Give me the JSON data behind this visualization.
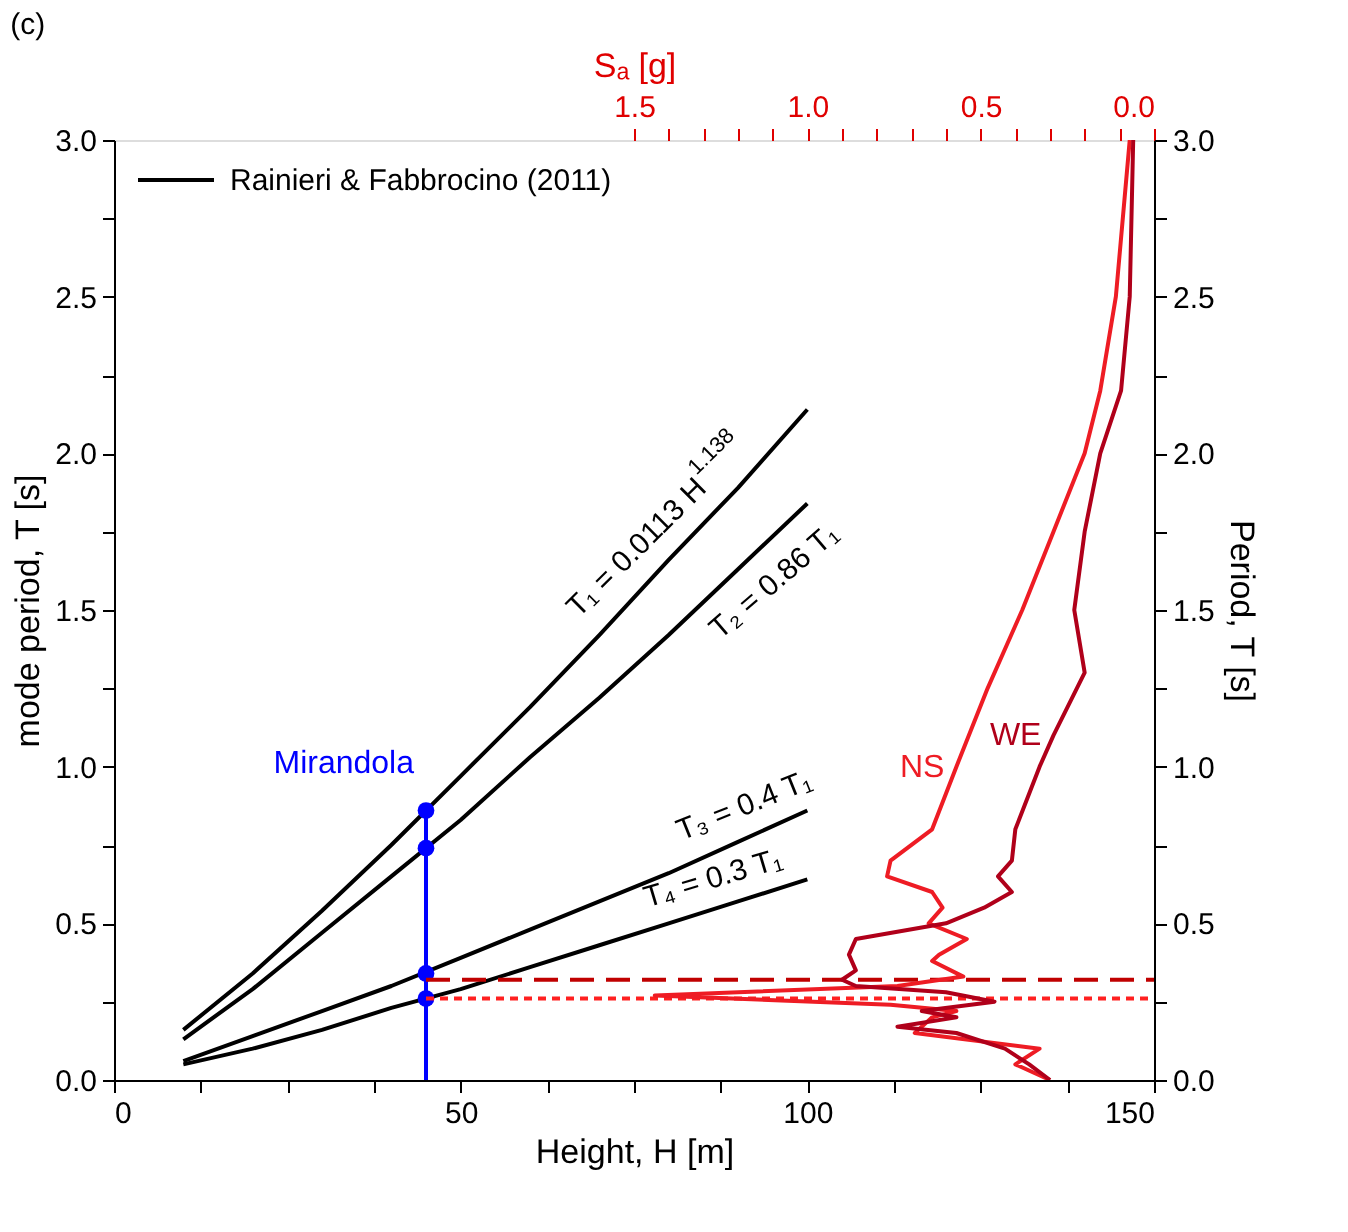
{
  "chart_data": {
    "type": "line",
    "title": "(c)",
    "xlabel": "Height, H [m]",
    "ylabel": "mode period, T [s]",
    "y2label": "Period, T [s]",
    "x2label": "Sₐ [g]",
    "xlim": [
      0,
      150
    ],
    "xticks": [
      0,
      {
        "value": 12.5,
        "label": null
      },
      {
        "value": 25,
        "label": null
      },
      {
        "value": 37.5,
        "label": null
      },
      50,
      {
        "value": 62.5,
        "label": null
      },
      {
        "value": 75,
        "label": null
      },
      {
        "value": 87.5,
        "label": null
      },
      100,
      {
        "value": 112.5,
        "label": null
      },
      {
        "value": 125,
        "label": null
      },
      {
        "value": 137.5,
        "label": null
      },
      150
    ],
    "ylim": [
      0.0,
      3.0
    ],
    "yticks": [
      {
        "value": 0,
        "label": "0.0"
      },
      {
        "value": 0.25,
        "label": null
      },
      0.5,
      {
        "value": 0.75,
        "label": null
      },
      {
        "value": 1,
        "label": "1.0"
      },
      {
        "value": 1.25,
        "label": null
      },
      1.5,
      {
        "value": 1.75,
        "label": null
      },
      {
        "value": 2,
        "label": "2.0"
      },
      {
        "value": 2.25,
        "label": null
      },
      2.5,
      {
        "value": 2.75,
        "label": null
      },
      {
        "value": 3,
        "label": "3.0"
      }
    ],
    "y2lim": [
      0.0,
      3.0
    ],
    "y2ticks": [
      {
        "value": 0,
        "label": "0.0"
      },
      {
        "value": 0.25,
        "label": null
      },
      0.5,
      {
        "value": 0.75,
        "label": null
      },
      {
        "value": 1,
        "label": "1.0"
      },
      {
        "value": 1.25,
        "label": null
      },
      1.5,
      {
        "value": 1.75,
        "label": null
      },
      {
        "value": 2,
        "label": "2.0"
      },
      {
        "value": 2.25,
        "label": null
      },
      2.5,
      {
        "value": 2.75,
        "label": null
      },
      {
        "value": 3,
        "label": "3.0"
      }
    ],
    "x2lim": [
      3.0,
      0.0
    ],
    "x2ticks": [
      1.5,
      {
        "value": 1.4,
        "label": null
      },
      {
        "value": 1.3,
        "label": null
      },
      {
        "value": 1.2,
        "label": null
      },
      {
        "value": 1.1,
        "label": null
      },
      {
        "value": 1,
        "label": "1.0"
      },
      {
        "value": 0.9,
        "label": null
      },
      {
        "value": 0.8,
        "label": null
      },
      {
        "value": 0.7,
        "label": null
      },
      {
        "value": 0.6,
        "label": null
      },
      0.5,
      {
        "value": 0.4,
        "label": null
      },
      {
        "value": 0.3,
        "label": null
      },
      {
        "value": 0.2,
        "label": null
      },
      {
        "value": 0.1,
        "label": null
      },
      {
        "value": 0,
        "label": "0.0"
      }
    ],
    "grid": false,
    "legend": "top left",
    "x": [
      10,
      20,
      30,
      40,
      50,
      60,
      70,
      80,
      90,
      100
    ],
    "series": [
      {
        "name": "Rainieri & Fabbrocino (2011)",
        "color": "#000000",
        "values": [
          0.16,
          0.34,
          0.54,
          0.75,
          0.97,
          1.19,
          1.42,
          1.66,
          1.89,
          2.14
        ]
      },
      {
        "color": "#000000",
        "values": [
          0.13,
          0.29,
          0.47,
          0.65,
          0.83,
          1.03,
          1.22,
          1.42,
          1.63,
          1.84
        ]
      },
      {
        "color": "#000000",
        "values": [
          0.06,
          0.14,
          0.22,
          0.3,
          0.39,
          0.48,
          0.57,
          0.66,
          0.76,
          0.86
        ]
      },
      {
        "color": "#000000",
        "values": [
          0.05,
          0.1,
          0.16,
          0.23,
          0.29,
          0.36,
          0.43,
          0.5,
          0.57,
          0.64
        ]
      },
      {
        "color": "#0000ff",
        "x": [
          45,
          45
        ],
        "values": [
          0.0,
          0.86
        ]
      },
      {
        "name": "Mirandola",
        "type": "scatter",
        "marker": "circle",
        "color": "#0000ff",
        "x": [
          45,
          45,
          45,
          45
        ],
        "values": [
          0.86,
          0.74,
          0.34,
          0.26
        ]
      },
      {
        "color": "#c00000",
        "line_style": "dashed",
        "x": [
          45,
          150
        ],
        "values": [
          0.32,
          0.32
        ]
      },
      {
        "color": "#ff2020",
        "line_style": "dotted",
        "x": [
          45,
          150
        ],
        "values": [
          0.26,
          0.26
        ]
      },
      {
        "name": "NS",
        "axis": "x2",
        "color": "#ee1c24",
        "x": [
          0.07,
          0.11,
          0.155,
          0.2,
          0.29,
          0.38,
          0.48,
          0.57,
          0.64,
          0.76,
          0.77,
          0.64,
          0.61,
          0.65,
          0.54,
          0.62,
          0.64,
          0.55,
          0.74,
          1.44,
          0.76,
          0.57,
          0.64,
          0.69,
          0.33,
          0.4,
          0.3
        ],
        "values": [
          3.0,
          2.5,
          2.2,
          2.0,
          1.75,
          1.5,
          1.25,
          1.0,
          0.8,
          0.7,
          0.65,
          0.6,
          0.55,
          0.5,
          0.45,
          0.4,
          0.38,
          0.33,
          0.3,
          0.27,
          0.24,
          0.22,
          0.2,
          0.15,
          0.1,
          0.05,
          0.0
        ]
      },
      {
        "name": "WE",
        "axis": "x2",
        "color": "#b0001a",
        "x": [
          0.06,
          0.07,
          0.095,
          0.155,
          0.2,
          0.23,
          0.2,
          0.29,
          0.33,
          0.4,
          0.41,
          0.45,
          0.41,
          0.49,
          0.6,
          0.86,
          0.88,
          0.86,
          0.9,
          0.86,
          0.6,
          0.46,
          0.67,
          0.57,
          0.74,
          0.57,
          0.43,
          0.36,
          0.3
        ],
        "values": [
          3.0,
          2.5,
          2.2,
          2.0,
          1.75,
          1.5,
          1.3,
          1.1,
          1.0,
          0.8,
          0.7,
          0.65,
          0.6,
          0.55,
          0.5,
          0.45,
          0.4,
          0.35,
          0.32,
          0.3,
          0.28,
          0.25,
          0.22,
          0.2,
          0.17,
          0.15,
          0.1,
          0.05,
          0.0
        ]
      }
    ],
    "annotations": [
      {
        "text": "T₁ = 0.0113 H$^{1.138}$",
        "x": 80,
        "y": 1.66
      },
      {
        "text": "T₂ = 0.86 T₁",
        "x": 90,
        "y": 1.63
      },
      {
        "text": "T₃ = 0.4 T₁",
        "x": 90,
        "y": 0.76
      },
      {
        "text": "T₄ = 0.3 T₁",
        "x": 85,
        "y": 0.53
      }
    ]
  }
}
